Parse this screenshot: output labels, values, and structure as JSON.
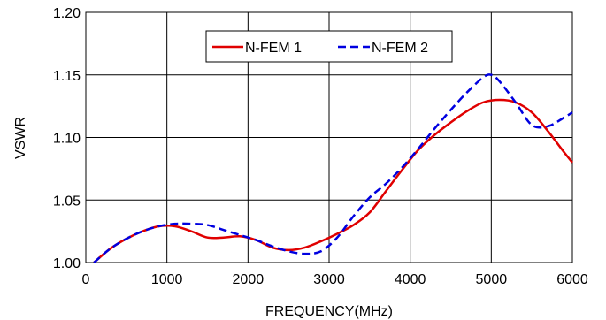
{
  "chart_data": {
    "type": "line",
    "title": "",
    "xlabel": "FREQUENCY(MHz)",
    "ylabel": "VSWR",
    "xlim": [
      0,
      6000
    ],
    "ylim": [
      1.0,
      1.2
    ],
    "xticks": [
      "0",
      "1000",
      "2000",
      "3000",
      "4000",
      "5000",
      "6000"
    ],
    "yticks": [
      "1.00",
      "1.05",
      "1.10",
      "1.15",
      "1.20"
    ],
    "grid": true,
    "legend_position": "top-center",
    "series": [
      {
        "name": "N-FEM 1",
        "color": "#e00000",
        "dash": "solid",
        "x": [
          100,
          300,
          500,
          700,
          900,
          1100,
          1300,
          1500,
          1700,
          1900,
          2100,
          2300,
          2500,
          2700,
          2900,
          3100,
          3300,
          3500,
          3700,
          3900,
          4100,
          4300,
          4500,
          4700,
          4900,
          5100,
          5300,
          5500,
          5700,
          5900,
          6000
        ],
        "y": [
          1.0,
          1.011,
          1.019,
          1.025,
          1.029,
          1.029,
          1.025,
          1.02,
          1.02,
          1.021,
          1.018,
          1.012,
          1.01,
          1.012,
          1.017,
          1.023,
          1.03,
          1.04,
          1.057,
          1.074,
          1.09,
          1.102,
          1.112,
          1.121,
          1.128,
          1.13,
          1.128,
          1.12,
          1.105,
          1.088,
          1.08
        ]
      },
      {
        "name": "N-FEM 2",
        "color": "#0000e0",
        "dash": "dashed",
        "x": [
          100,
          300,
          500,
          700,
          900,
          1100,
          1300,
          1500,
          1700,
          1900,
          2100,
          2300,
          2500,
          2700,
          2900,
          3100,
          3300,
          3500,
          3700,
          3900,
          4100,
          4300,
          4500,
          4700,
          4900,
          5000,
          5100,
          5300,
          5500,
          5700,
          5900,
          6000
        ],
        "y": [
          1.0,
          1.011,
          1.019,
          1.025,
          1.029,
          1.031,
          1.031,
          1.03,
          1.026,
          1.022,
          1.018,
          1.013,
          1.009,
          1.007,
          1.009,
          1.02,
          1.037,
          1.052,
          1.063,
          1.076,
          1.091,
          1.107,
          1.122,
          1.136,
          1.148,
          1.15,
          1.145,
          1.128,
          1.11,
          1.109,
          1.116,
          1.12
        ]
      }
    ]
  }
}
